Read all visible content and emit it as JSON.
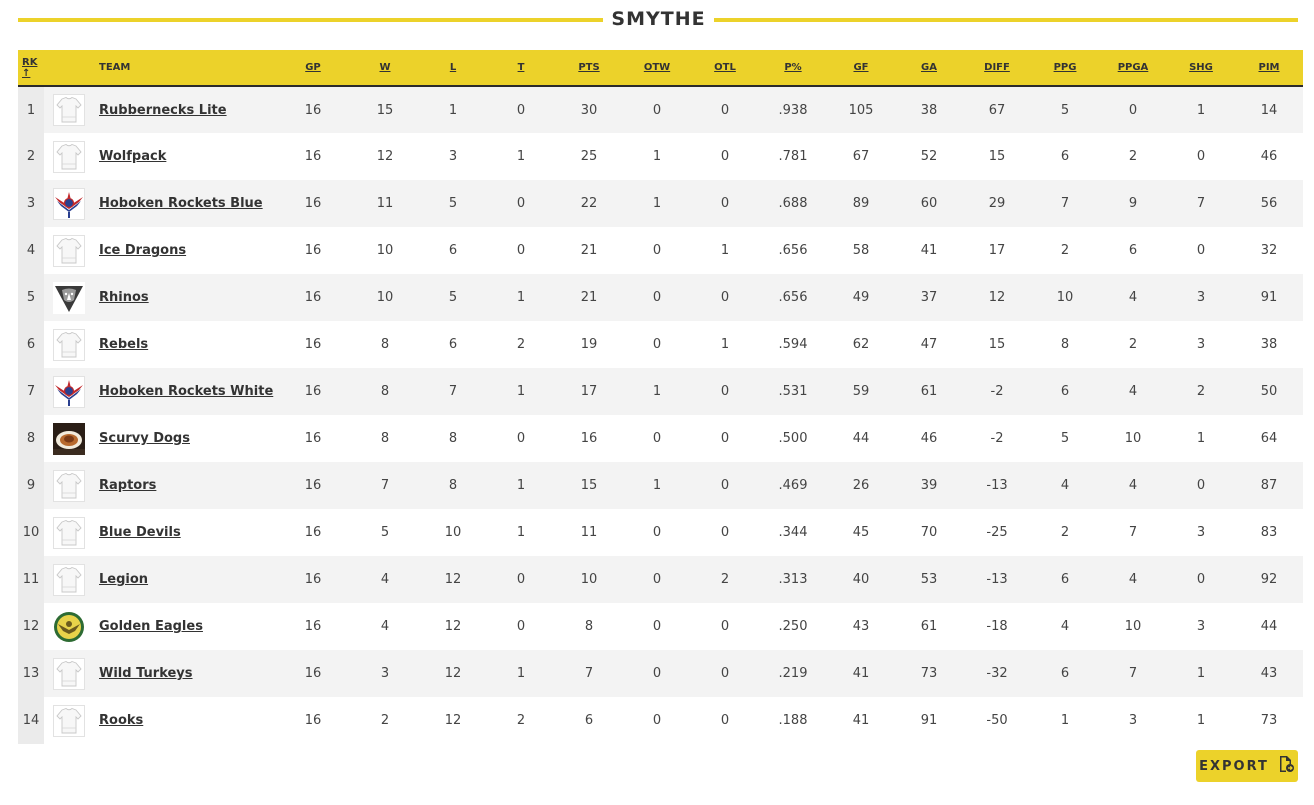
{
  "division": {
    "title": "SMYTHE"
  },
  "columns": {
    "rk": "RK ↑",
    "team": "TEAM",
    "gp": "GP",
    "w": "W",
    "l": "L",
    "t": "T",
    "pts": "PTS",
    "otw": "OTW",
    "otl": "OTL",
    "pct": "P%",
    "gf": "GF",
    "ga": "GA",
    "diff": "DIFF",
    "ppg": "PPG",
    "ppga": "PPGA",
    "shg": "SHG",
    "pim": "PIM"
  },
  "rows": [
    {
      "rk": "1",
      "team": "Rubbernecks Lite",
      "logo": "jersey-icon",
      "gp": "16",
      "w": "15",
      "l": "1",
      "t": "0",
      "pts": "30",
      "otw": "0",
      "otl": "0",
      "pct": ".938",
      "gf": "105",
      "ga": "38",
      "diff": "67",
      "ppg": "5",
      "ppga": "0",
      "shg": "1",
      "pim": "14"
    },
    {
      "rk": "2",
      "team": "Wolfpack",
      "logo": "jersey-icon",
      "gp": "16",
      "w": "12",
      "l": "3",
      "t": "1",
      "pts": "25",
      "otw": "1",
      "otl": "0",
      "pct": ".781",
      "gf": "67",
      "ga": "52",
      "diff": "15",
      "ppg": "6",
      "ppga": "2",
      "shg": "0",
      "pim": "46"
    },
    {
      "rk": "3",
      "team": "Hoboken Rockets Blue",
      "logo": "rockets-logo",
      "gp": "16",
      "w": "11",
      "l": "5",
      "t": "0",
      "pts": "22",
      "otw": "1",
      "otl": "0",
      "pct": ".688",
      "gf": "89",
      "ga": "60",
      "diff": "29",
      "ppg": "7",
      "ppga": "9",
      "shg": "7",
      "pim": "56"
    },
    {
      "rk": "4",
      "team": "Ice Dragons",
      "logo": "jersey-icon",
      "gp": "16",
      "w": "10",
      "l": "6",
      "t": "0",
      "pts": "21",
      "otw": "0",
      "otl": "1",
      "pct": ".656",
      "gf": "58",
      "ga": "41",
      "diff": "17",
      "ppg": "2",
      "ppga": "6",
      "shg": "0",
      "pim": "32"
    },
    {
      "rk": "5",
      "team": "Rhinos",
      "logo": "rhinos-logo",
      "gp": "16",
      "w": "10",
      "l": "5",
      "t": "1",
      "pts": "21",
      "otw": "0",
      "otl": "0",
      "pct": ".656",
      "gf": "49",
      "ga": "37",
      "diff": "12",
      "ppg": "10",
      "ppga": "4",
      "shg": "3",
      "pim": "91"
    },
    {
      "rk": "6",
      "team": "Rebels",
      "logo": "jersey-icon",
      "gp": "16",
      "w": "8",
      "l": "6",
      "t": "2",
      "pts": "19",
      "otw": "0",
      "otl": "1",
      "pct": ".594",
      "gf": "62",
      "ga": "47",
      "diff": "15",
      "ppg": "8",
      "ppga": "2",
      "shg": "3",
      "pim": "38"
    },
    {
      "rk": "7",
      "team": "Hoboken Rockets White",
      "logo": "rockets-logo",
      "gp": "16",
      "w": "8",
      "l": "7",
      "t": "1",
      "pts": "17",
      "otw": "1",
      "otl": "0",
      "pct": ".531",
      "gf": "59",
      "ga": "61",
      "diff": "-2",
      "ppg": "6",
      "ppga": "4",
      "shg": "2",
      "pim": "50"
    },
    {
      "rk": "8",
      "team": "Scurvy Dogs",
      "logo": "scurvy-dogs-logo",
      "gp": "16",
      "w": "8",
      "l": "8",
      "t": "0",
      "pts": "16",
      "otw": "0",
      "otl": "0",
      "pct": ".500",
      "gf": "44",
      "ga": "46",
      "diff": "-2",
      "ppg": "5",
      "ppga": "10",
      "shg": "1",
      "pim": "64"
    },
    {
      "rk": "9",
      "team": "Raptors",
      "logo": "jersey-icon",
      "gp": "16",
      "w": "7",
      "l": "8",
      "t": "1",
      "pts": "15",
      "otw": "1",
      "otl": "0",
      "pct": ".469",
      "gf": "26",
      "ga": "39",
      "diff": "-13",
      "ppg": "4",
      "ppga": "4",
      "shg": "0",
      "pim": "87"
    },
    {
      "rk": "10",
      "team": "Blue Devils",
      "logo": "jersey-icon",
      "gp": "16",
      "w": "5",
      "l": "10",
      "t": "1",
      "pts": "11",
      "otw": "0",
      "otl": "0",
      "pct": ".344",
      "gf": "45",
      "ga": "70",
      "diff": "-25",
      "ppg": "2",
      "ppga": "7",
      "shg": "3",
      "pim": "83"
    },
    {
      "rk": "11",
      "team": "Legion",
      "logo": "jersey-icon",
      "gp": "16",
      "w": "4",
      "l": "12",
      "t": "0",
      "pts": "10",
      "otw": "0",
      "otl": "2",
      "pct": ".313",
      "gf": "40",
      "ga": "53",
      "diff": "-13",
      "ppg": "6",
      "ppga": "4",
      "shg": "0",
      "pim": "92"
    },
    {
      "rk": "12",
      "team": "Golden Eagles",
      "logo": "golden-eagles-logo",
      "gp": "16",
      "w": "4",
      "l": "12",
      "t": "0",
      "pts": "8",
      "otw": "0",
      "otl": "0",
      "pct": ".250",
      "gf": "43",
      "ga": "61",
      "diff": "-18",
      "ppg": "4",
      "ppga": "10",
      "shg": "3",
      "pim": "44"
    },
    {
      "rk": "13",
      "team": "Wild Turkeys",
      "logo": "jersey-icon",
      "gp": "16",
      "w": "3",
      "l": "12",
      "t": "1",
      "pts": "7",
      "otw": "0",
      "otl": "0",
      "pct": ".219",
      "gf": "41",
      "ga": "73",
      "diff": "-32",
      "ppg": "6",
      "ppga": "7",
      "shg": "1",
      "pim": "43"
    },
    {
      "rk": "14",
      "team": "Rooks",
      "logo": "jersey-icon",
      "gp": "16",
      "w": "2",
      "l": "12",
      "t": "2",
      "pts": "6",
      "otw": "0",
      "otl": "0",
      "pct": ".188",
      "gf": "41",
      "ga": "91",
      "diff": "-50",
      "ppg": "1",
      "ppga": "3",
      "shg": "1",
      "pim": "73"
    }
  ],
  "colors": {
    "accent": "#ecd22a",
    "positive": "#2f9a3c",
    "negative": "#d0342c"
  },
  "export": {
    "label": "EXPORT",
    "icon": "export-file-icon"
  }
}
